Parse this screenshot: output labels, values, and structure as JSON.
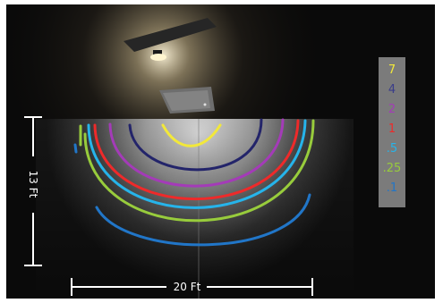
{
  "scene": {
    "background_color": "#080808",
    "light_color": "#fff2cc"
  },
  "dimensions": {
    "height_label": "13 Ft",
    "width_label": "20 Ft"
  },
  "legend": {
    "items": [
      {
        "label": "7",
        "color": "#f2e83a"
      },
      {
        "label": "4",
        "color": "#3a3c8a"
      },
      {
        "label": "2",
        "color": "#a43bb8"
      },
      {
        "label": "1",
        "color": "#ee2a2a"
      },
      {
        "label": ".5",
        "color": "#26b4ea"
      },
      {
        "label": ".25",
        "color": "#98cc3c"
      },
      {
        "label": ".1",
        "color": "#2176c8"
      }
    ]
  },
  "isolines": [
    {
      "level": "7",
      "color": "#f2e83a"
    },
    {
      "level": "4",
      "color": "#23246a"
    },
    {
      "level": "2",
      "color": "#a43bb8"
    },
    {
      "level": "1",
      "color": "#ee2a2a"
    },
    {
      "level": ".5",
      "color": "#26b4ea"
    },
    {
      "level": ".25",
      "color": "#98cc3c"
    },
    {
      "level": ".1",
      "color": "#2176c8"
    }
  ]
}
